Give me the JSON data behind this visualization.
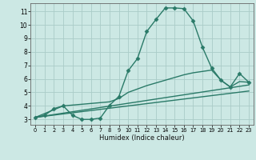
{
  "bg_color": "#cce8e4",
  "grid_color": "#aaccc8",
  "line_color": "#2a7a68",
  "xlabel": "Humidex (Indice chaleur)",
  "xlim": [
    -0.5,
    23.5
  ],
  "ylim": [
    2.6,
    11.6
  ],
  "yticks": [
    3,
    4,
    5,
    6,
    7,
    8,
    9,
    10,
    11
  ],
  "xticks": [
    0,
    1,
    2,
    3,
    4,
    5,
    6,
    7,
    8,
    9,
    10,
    11,
    12,
    13,
    14,
    15,
    16,
    17,
    18,
    19,
    20,
    21,
    22,
    23
  ],
  "lines": [
    {
      "x": [
        0,
        1,
        2,
        3,
        4,
        5,
        6,
        7,
        8,
        9,
        10,
        11,
        12,
        13,
        14,
        15,
        16,
        17,
        18,
        19,
        20,
        21,
        22,
        23
      ],
      "y": [
        3.15,
        3.3,
        3.8,
        4.0,
        3.3,
        3.0,
        3.0,
        3.1,
        4.05,
        4.7,
        6.6,
        7.5,
        9.5,
        10.4,
        11.25,
        11.25,
        11.2,
        10.3,
        8.35,
        6.8,
        5.9,
        5.4,
        6.4,
        5.75
      ],
      "marker": "D",
      "markersize": 2.5,
      "linewidth": 1.0,
      "has_marker": true
    },
    {
      "x": [
        0,
        3,
        8,
        9,
        10,
        11,
        12,
        13,
        14,
        15,
        16,
        17,
        18,
        19,
        20,
        21,
        22,
        23
      ],
      "y": [
        3.15,
        4.0,
        4.3,
        4.55,
        5.0,
        5.25,
        5.5,
        5.7,
        5.9,
        6.1,
        6.3,
        6.45,
        6.55,
        6.65,
        5.9,
        5.4,
        5.8,
        5.75
      ],
      "marker": null,
      "markersize": 0,
      "linewidth": 1.0,
      "has_marker": false
    },
    {
      "x": [
        0,
        23
      ],
      "y": [
        3.15,
        5.55
      ],
      "marker": null,
      "markersize": 0,
      "linewidth": 1.0,
      "has_marker": false
    },
    {
      "x": [
        0,
        23
      ],
      "y": [
        3.15,
        5.1
      ],
      "marker": null,
      "markersize": 0,
      "linewidth": 1.0,
      "has_marker": false
    }
  ]
}
